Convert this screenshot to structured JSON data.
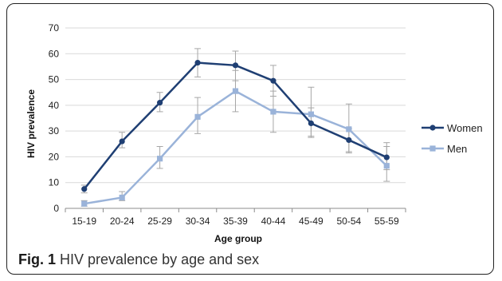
{
  "figure": {
    "caption_label": "Fig. 1",
    "caption_text": "HIV prevalence by age and sex"
  },
  "chart_data": {
    "type": "line",
    "title": "",
    "xlabel": "Age group",
    "ylabel": "HIV prevalence",
    "ylim": [
      0,
      70
    ],
    "yticks": [
      0,
      10,
      20,
      30,
      40,
      50,
      60,
      70
    ],
    "grid": "horizontal",
    "legend_position": "right",
    "categories": [
      "15-19",
      "20-24",
      "25-29",
      "30-34",
      "35-39",
      "40-44",
      "45-49",
      "50-54",
      "55-59"
    ],
    "series": [
      {
        "name": "Women",
        "color": "#1f3f73",
        "marker": "circle",
        "values": [
          7.5,
          26,
          41,
          56.5,
          55.5,
          49.5,
          33,
          26.5,
          19.8
        ],
        "error_low": [
          6,
          23.5,
          37.5,
          51,
          49.5,
          43.5,
          28,
          22,
          15
        ],
        "error_high": [
          9,
          29.5,
          45,
          62,
          61,
          55.5,
          39,
          31,
          25.5
        ]
      },
      {
        "name": "Men",
        "color": "#9ab3d9",
        "marker": "square",
        "values": [
          1.8,
          4.2,
          19.3,
          35.5,
          45.5,
          37.5,
          36.5,
          30.7,
          16.5
        ],
        "error_low": [
          0.8,
          3,
          15.5,
          29,
          37.5,
          29.5,
          27.5,
          21.5,
          10.5
        ],
        "error_high": [
          3,
          6.5,
          24,
          43,
          53.5,
          45.5,
          47,
          40.5,
          24
        ]
      }
    ]
  }
}
